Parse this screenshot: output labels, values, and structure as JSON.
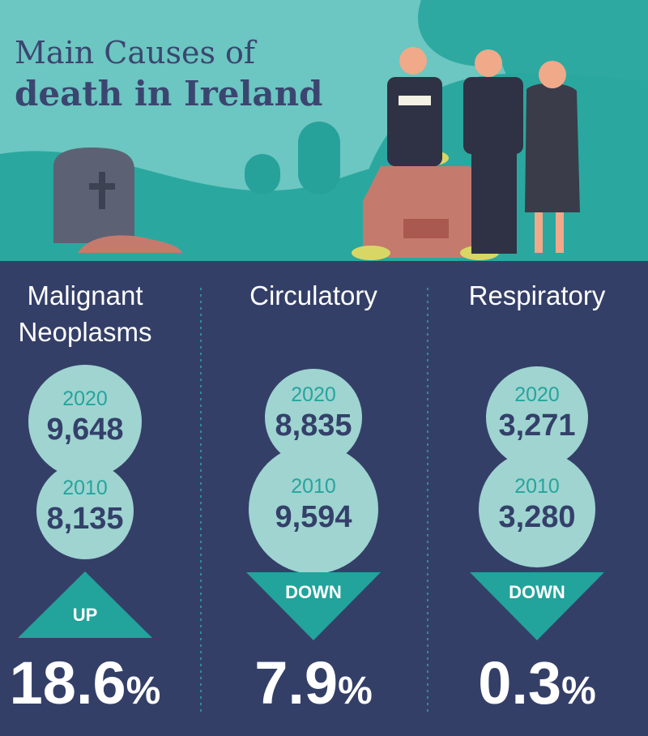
{
  "header": {
    "title_line1": "Main Causes of",
    "title_line2": "death in Ireland"
  },
  "columns": [
    {
      "cause": [
        "Malignant",
        "Neoplasms"
      ],
      "year_a": "2020",
      "value_a": "9,648",
      "year_b": "2010",
      "value_b": "8,135",
      "direction": "UP",
      "change": "18.6",
      "unit": "%"
    },
    {
      "cause": [
        "Circulatory"
      ],
      "year_a": "2020",
      "value_a": "8,835",
      "year_b": "2010",
      "value_b": "9,594",
      "direction": "DOWN",
      "change": "7.9",
      "unit": "%"
    },
    {
      "cause": [
        "Respiratory"
      ],
      "year_a": "2020",
      "value_a": "3,271",
      "year_b": "2010",
      "value_b": "3,280",
      "direction": "DOWN",
      "change": "0.3",
      "unit": "%"
    }
  ]
}
